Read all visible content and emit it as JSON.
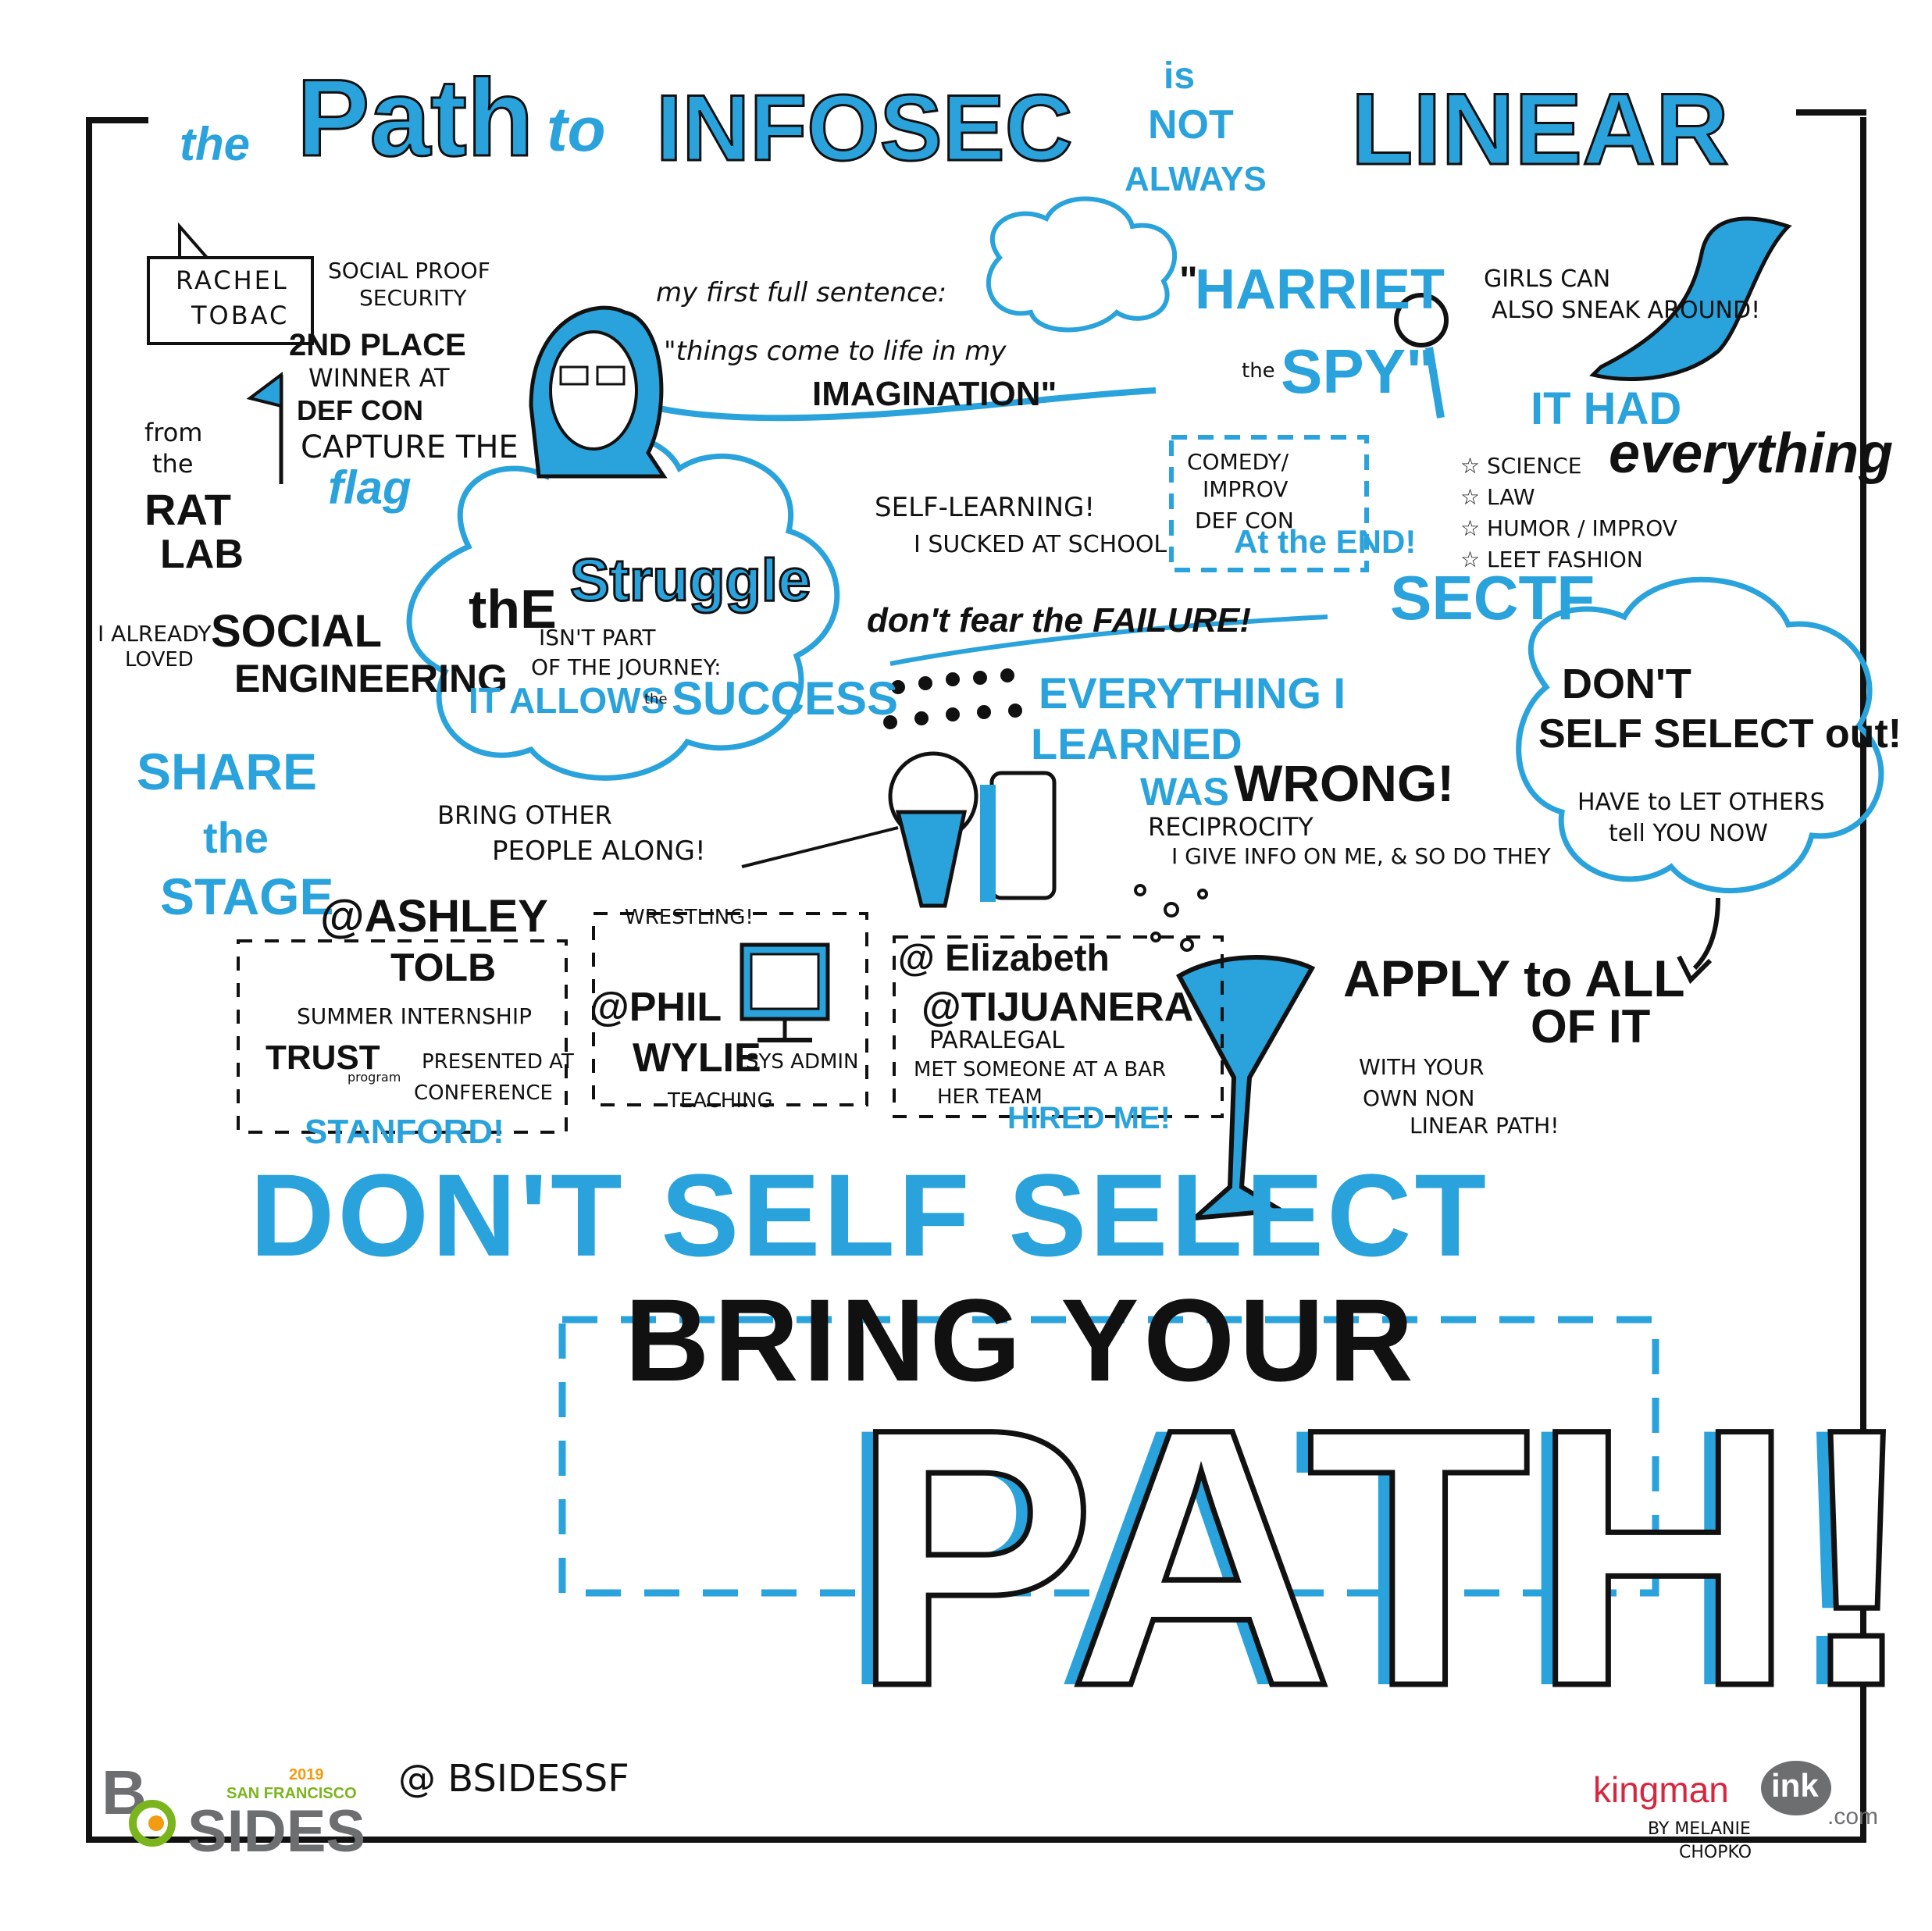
{
  "title": {
    "the": "the",
    "path": "Path",
    "to": "to",
    "infosec": "INFOSEC",
    "is": "is",
    "not": "NOT",
    "always": "ALWAYS",
    "linear": "LINEAR"
  },
  "speaker": {
    "name_line1": "RACHEL",
    "name_line2": "TOBAC",
    "company_line1": "SOCIAL PROOF",
    "company_line2": "SECURITY"
  },
  "defcon": {
    "line1": "2ND PLACE",
    "line2": "WINNER AT",
    "line3": "DEF CON",
    "line4": "CAPTURE THE",
    "flag": "flag"
  },
  "ratlab": {
    "from": "from",
    "the": "the",
    "rat": "RAT",
    "lab": "LAB"
  },
  "social_eng": {
    "already": "I ALREADY",
    "loved": "LOVED",
    "social": "SOCIAL",
    "engineering": "ENGINEERING"
  },
  "struggle": {
    "the": "thE",
    "struggle": "Struggle",
    "isnt": "ISN'T PART",
    "journey": "OF THE JOURNEY:",
    "allows": "IT ALLOWS",
    "the_small": "the",
    "success": "SUCCESS"
  },
  "sentence": {
    "first": "my first full sentence:",
    "quote": "\"things come to life in my",
    "imagination": "IMAGINATION\""
  },
  "harriet": {
    "open_quote": "\"",
    "harriet": "HARRIET",
    "the": "the",
    "spy": "SPY\""
  },
  "girls": {
    "line1": "GIRLS CAN",
    "line2": "ALSO SNEAK AROUND!"
  },
  "self_learning": {
    "line1": "SELF-LEARNING!",
    "line2": "I SUCKED AT SCHOOL"
  },
  "comedy": {
    "line1": "COMEDY/",
    "line2": "IMPROV",
    "line3": "DEF CON",
    "end": "At the END!"
  },
  "it_had": {
    "it_had": "IT HAD",
    "everything": "everything",
    "items": [
      "SCIENCE",
      "LAW",
      "HUMOR / IMPROV",
      "LEET FASHION"
    ]
  },
  "sectf": "SECTF",
  "fear": "don't fear the FAILURE!",
  "everything_wrong": {
    "line1": "EVERYTHING I",
    "line2": "LEARNED",
    "was": "WAS",
    "wrong": "WRONG!"
  },
  "share": {
    "share": "SHARE",
    "the": "the",
    "stage": "STAGE"
  },
  "bring_people": {
    "line1": "BRING OTHER",
    "line2": "PEOPLE ALONG!"
  },
  "reciprocity": {
    "line1": "RECIPROCITY",
    "line2": "I GIVE INFO ON ME, & SO DO THEY"
  },
  "dont_self_select_cloud": {
    "line1": "DON'T",
    "line2": "SELF SELECT out!",
    "line3": "HAVE to LET OTHERS",
    "line4": "tell YOU NOW"
  },
  "ashley": {
    "handle": "@ASHLEY",
    "name": "TOLB",
    "internship": "SUMMER INTERNSHIP",
    "trust": "TRUST",
    "program": "program",
    "presented": "PRESENTED AT",
    "conference": "CONFERENCE",
    "stanford": "STANFORD!"
  },
  "phil": {
    "wrestling": "WRESTLING!",
    "handle": "@PHIL",
    "name": "WYLIE",
    "sysadmin": "SYS ADMIN",
    "teaching": "TEACHING"
  },
  "elizabeth": {
    "handle1": "@ Elizabeth",
    "handle2": "@TIJUANERA",
    "role": "PARALEGAL",
    "met": "MET SOMEONE AT A BAR",
    "team": "HER TEAM",
    "hired": "HIRED ME!"
  },
  "apply": {
    "apply": "APPLY to ALL",
    "of_it": "OF IT",
    "line1": "WITH YOUR",
    "line2": "OWN NON",
    "line3": "LINEAR PATH!"
  },
  "dont_self_select_big": "DON'T SELF SELECT",
  "bring_your": "BRING YOUR",
  "path_big": "PATH!",
  "handle_bsides": "@ BSIDESSF",
  "bsides_logo": {
    "b": "B",
    "sides": "SIDES",
    "year": "2019",
    "city": "SAN FRANCISCO"
  },
  "kingman": {
    "kingman": "kingman",
    "ink": "ink",
    "com": ".com",
    "by": "BY MELANIE",
    "name": "CHOPKO"
  },
  "colors": {
    "blue": "#2aa3dc",
    "ink": "#111111",
    "logo_green": "#7ab51d",
    "logo_orange": "#f39c12",
    "logo_gray": "#6d6e70",
    "kingman_red": "#d7263d"
  }
}
